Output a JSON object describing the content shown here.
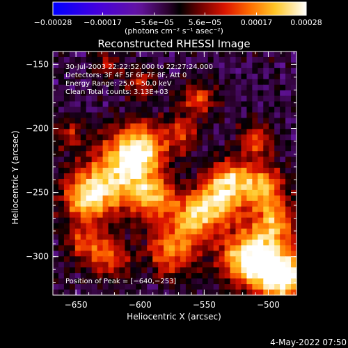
{
  "chart_data": {
    "type": "heatmap",
    "title": "Reconstructed RHESSI Image",
    "xlabel": "Heliocentric X (arcsec)",
    "ylabel": "Heliocentric Y (arcsec)",
    "xlim": [
      -668,
      -478
    ],
    "ylim": [
      -330,
      -140
    ],
    "x_ticks": [
      -650,
      -600,
      -550,
      -500
    ],
    "x_tick_labels": [
      "−650",
      "−600",
      "−550",
      "−500"
    ],
    "y_ticks": [
      -150,
      -200,
      -250,
      -300
    ],
    "y_tick_labels": [
      "−150",
      "−200",
      "−250",
      "−300"
    ],
    "colorbar": {
      "min": -0.00028,
      "max": 0.00028,
      "ticks": [
        -0.00028,
        -0.00017,
        -5.6e-05,
        5.6e-05,
        0.00017,
        0.00028
      ],
      "tick_labels": [
        "−0.00028",
        "−0.00017",
        "−5.6e−05",
        "5.6e−05",
        "0.00017",
        "0.00028"
      ],
      "units_label": "(photons cm⁻² s⁻¹ asec⁻²)"
    },
    "annotations": [
      "30-Jul-2003 22:22:52.000 to 22:27:24.000",
      "Detectors: 3F 4F 5F 6F 7F 8F, Att 0",
      "Energy Range: 25.0 - 50.0 keV",
      "Clean     Total counts: 3.13E+03"
    ],
    "peak_label": "Position of Peak = [−640,−253]",
    "peak": [
      -640,
      -253
    ],
    "footer_date": "4-May-2022 07:50"
  }
}
